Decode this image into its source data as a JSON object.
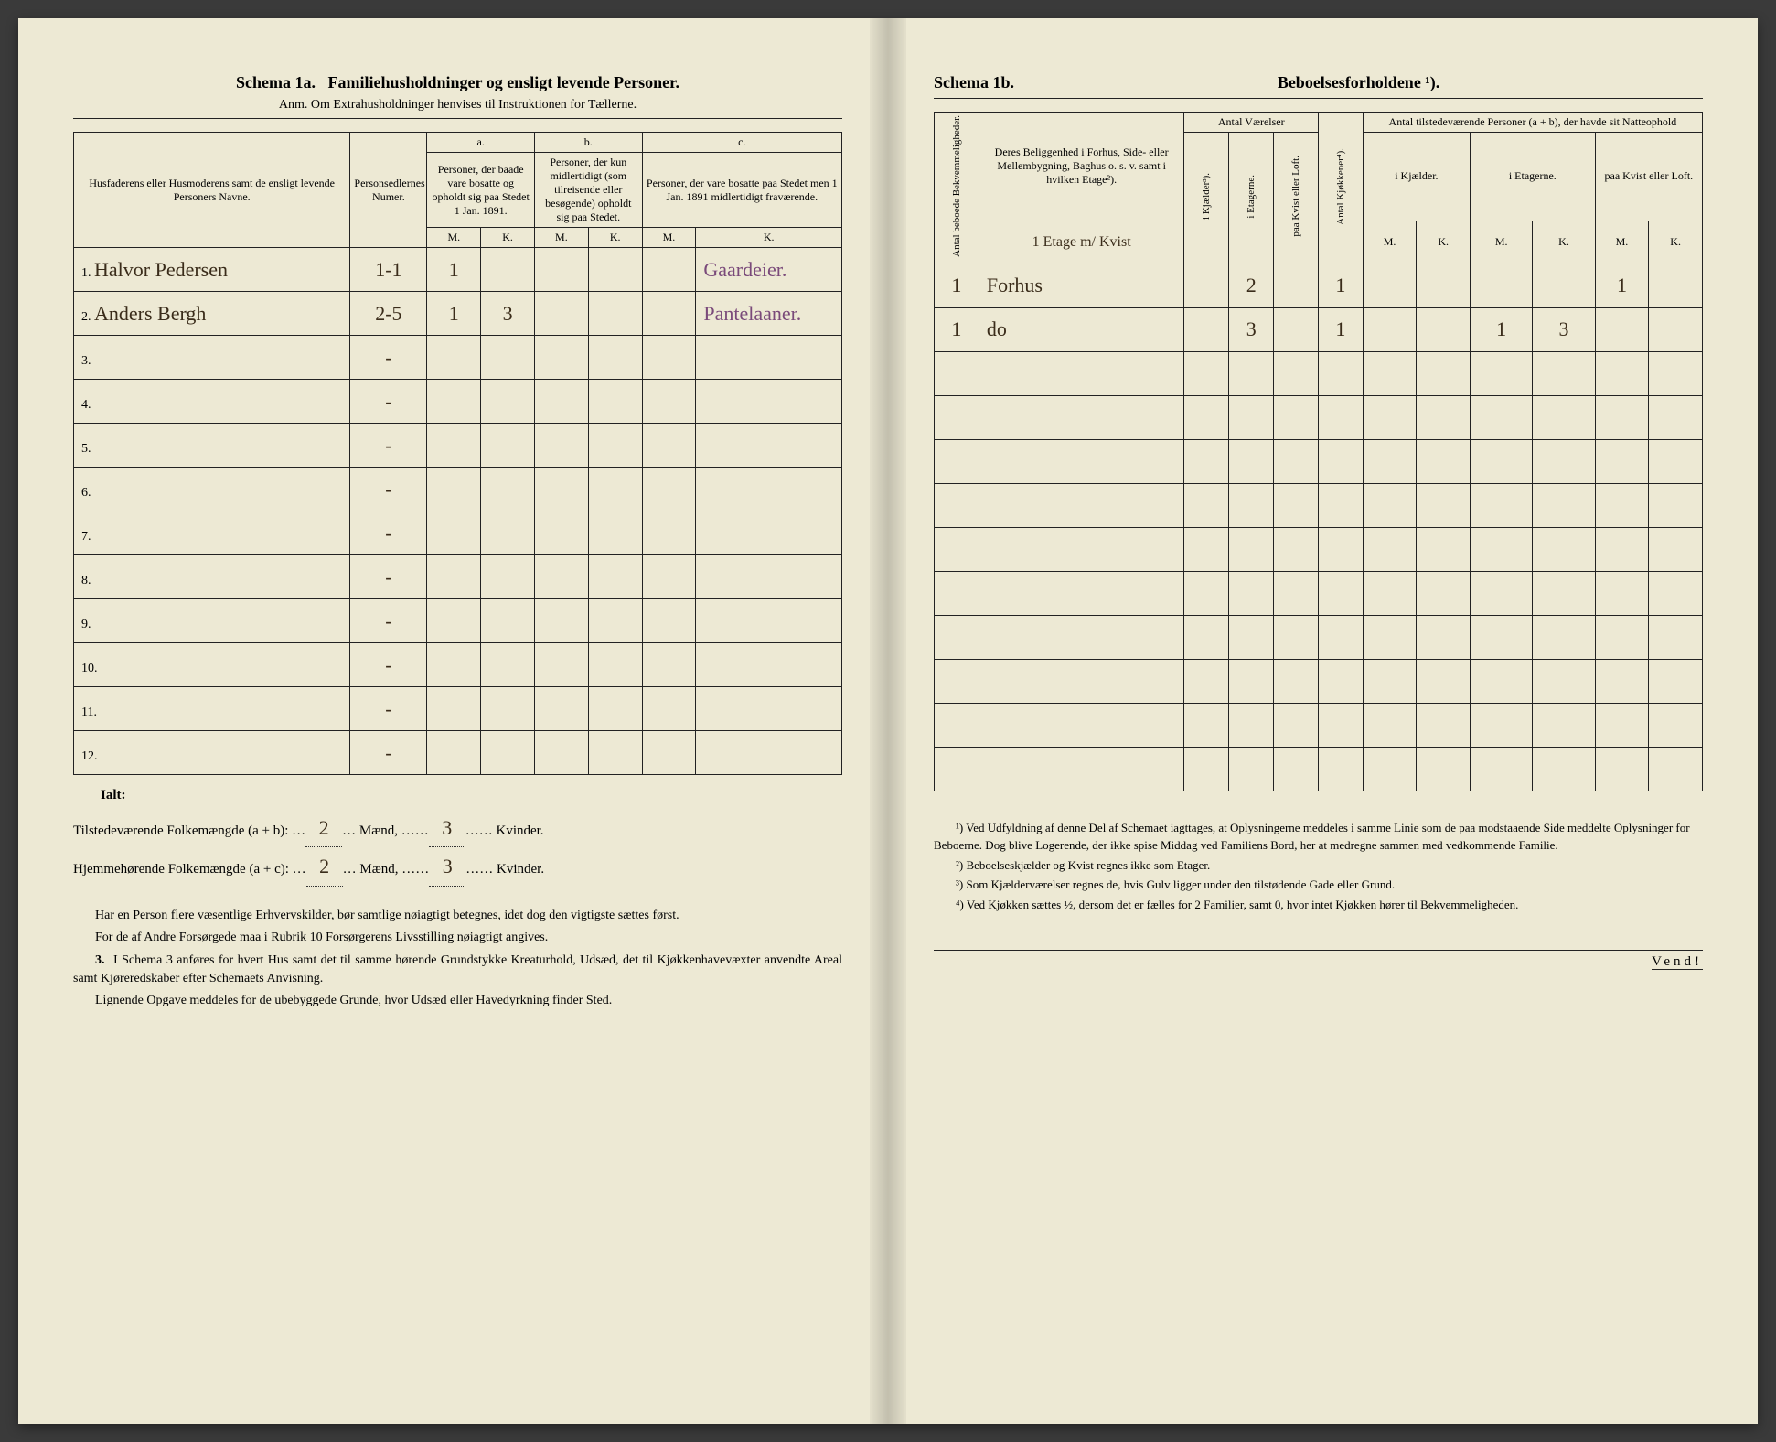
{
  "left": {
    "schema_label": "Schema 1a.",
    "title": "Familiehusholdninger og ensligt levende Personer.",
    "subtitle": "Anm. Om Extrahusholdninger henvises til Instruktionen for Tællerne.",
    "headers": {
      "col1": "Husfaderens eller Husmoderens samt de ensligt levende Personers Navne.",
      "col2": "Personsedlernes Numer.",
      "group_a": "a.",
      "group_a_text": "Personer, der baade vare bosatte og opholdt sig paa Stedet 1 Jan. 1891.",
      "group_b": "b.",
      "group_b_text": "Personer, der kun midlertidigt (som tilreisende eller besøgende) opholdt sig paa Stedet.",
      "group_c": "c.",
      "group_c_text": "Personer, der vare bosatte paa Stedet men 1 Jan. 1891 midlertidigt fraværende.",
      "m": "M.",
      "k": "K."
    },
    "rows": [
      {
        "n": "1.",
        "name": "Halvor Pedersen",
        "num": "1-1",
        "am": "1",
        "ak": "",
        "bm": "",
        "bk": "",
        "note": "Gaardeier."
      },
      {
        "n": "2.",
        "name": "Anders Bergh",
        "num": "2-5",
        "am": "1",
        "ak": "3",
        "bm": "",
        "bk": "",
        "note": "Pantelaaner."
      },
      {
        "n": "3.",
        "name": "",
        "num": "-",
        "am": "",
        "ak": "",
        "bm": "",
        "bk": "",
        "note": ""
      },
      {
        "n": "4.",
        "name": "",
        "num": "-",
        "am": "",
        "ak": "",
        "bm": "",
        "bk": "",
        "note": ""
      },
      {
        "n": "5.",
        "name": "",
        "num": "-",
        "am": "",
        "ak": "",
        "bm": "",
        "bk": "",
        "note": ""
      },
      {
        "n": "6.",
        "name": "",
        "num": "-",
        "am": "",
        "ak": "",
        "bm": "",
        "bk": "",
        "note": ""
      },
      {
        "n": "7.",
        "name": "",
        "num": "-",
        "am": "",
        "ak": "",
        "bm": "",
        "bk": "",
        "note": ""
      },
      {
        "n": "8.",
        "name": "",
        "num": "-",
        "am": "",
        "ak": "",
        "bm": "",
        "bk": "",
        "note": ""
      },
      {
        "n": "9.",
        "name": "",
        "num": "-",
        "am": "",
        "ak": "",
        "bm": "",
        "bk": "",
        "note": ""
      },
      {
        "n": "10.",
        "name": "",
        "num": "-",
        "am": "",
        "ak": "",
        "bm": "",
        "bk": "",
        "note": ""
      },
      {
        "n": "11.",
        "name": "",
        "num": "-",
        "am": "",
        "ak": "",
        "bm": "",
        "bk": "",
        "note": ""
      },
      {
        "n": "12.",
        "name": "",
        "num": "-",
        "am": "",
        "ak": "",
        "bm": "",
        "bk": "",
        "note": ""
      }
    ],
    "totals": {
      "ialt": "Ialt:",
      "line1_label": "Tilstedeværende Folkemængde (a + b):",
      "line1_m": "2",
      "line1_mlabel": "Mænd,",
      "line1_k": "3",
      "line1_klabel": "Kvinder.",
      "line2_label": "Hjemmehørende Folkemængde (a + c):",
      "line2_m": "2",
      "line2_k": "3"
    },
    "notes": {
      "p1": "Har en Person flere væsentlige Erhvervskilder, bør samtlige nøiagtigt betegnes, idet dog den vigtigste sættes først.",
      "p2": "For de af Andre Forsørgede maa i Rubrik 10 Forsørgerens Livsstilling nøiagtigt angives.",
      "p3num": "3.",
      "p3": "I Schema 3 anføres for hvert Hus samt det til samme hørende Grundstykke Kreaturhold, Udsæd, det til Kjøkkenhavevæxter anvendte Areal samt Kjøreredskaber efter Schemaets Anvisning.",
      "p4": "Lignende Opgave meddeles for de ubebyggede Grunde, hvor Udsæd eller Havedyrkning finder Sted."
    }
  },
  "right": {
    "schema_label": "Schema 1b.",
    "title": "Beboelsesforholdene ¹).",
    "headers": {
      "v1": "Antal beboede Bekvemmeligheder.",
      "col_belig": "Deres Beliggenhed i Forhus, Side- eller Mellembygning, Baghus o. s. v. samt i hvilken Etage²).",
      "group_rooms": "Antal Værelser",
      "v_kjael": "i Kjælder³).",
      "v_etage": "i Etagerne.",
      "v_kvist": "paa Kvist eller Loft.",
      "v_kjok": "Antal Kjøkkener⁴).",
      "group_pers": "Antal tilstedeværende Personer (a + b), der havde sit Natteophold",
      "p_kjael": "i Kjælder.",
      "p_etage": "i Etagerne.",
      "p_kvist": "paa Kvist eller Loft.",
      "m": "M.",
      "k": "K."
    },
    "header_handwritten": "1 Etage m/ Kvist",
    "rows": [
      {
        "bk": "1",
        "belig": "Forhus",
        "kj": "",
        "et": "2",
        "kv": "",
        "kk": "1",
        "pkjm": "",
        "pkjk": "",
        "petm": "",
        "petk": "",
        "pkvm": "1",
        "pkvk": ""
      },
      {
        "bk": "1",
        "belig": "do",
        "kj": "",
        "et": "3",
        "kv": "",
        "kk": "1",
        "pkjm": "",
        "pkjk": "",
        "petm": "1",
        "petk": "3",
        "pkvm": "",
        "pkvk": ""
      },
      {
        "bk": "",
        "belig": "",
        "kj": "",
        "et": "",
        "kv": "",
        "kk": "",
        "pkjm": "",
        "pkjk": "",
        "petm": "",
        "petk": "",
        "pkvm": "",
        "pkvk": ""
      },
      {
        "bk": "",
        "belig": "",
        "kj": "",
        "et": "",
        "kv": "",
        "kk": "",
        "pkjm": "",
        "pkjk": "",
        "petm": "",
        "petk": "",
        "pkvm": "",
        "pkvk": ""
      },
      {
        "bk": "",
        "belig": "",
        "kj": "",
        "et": "",
        "kv": "",
        "kk": "",
        "pkjm": "",
        "pkjk": "",
        "petm": "",
        "petk": "",
        "pkvm": "",
        "pkvk": ""
      },
      {
        "bk": "",
        "belig": "",
        "kj": "",
        "et": "",
        "kv": "",
        "kk": "",
        "pkjm": "",
        "pkjk": "",
        "petm": "",
        "petk": "",
        "pkvm": "",
        "pkvk": ""
      },
      {
        "bk": "",
        "belig": "",
        "kj": "",
        "et": "",
        "kv": "",
        "kk": "",
        "pkjm": "",
        "pkjk": "",
        "petm": "",
        "petk": "",
        "pkvm": "",
        "pkvk": ""
      },
      {
        "bk": "",
        "belig": "",
        "kj": "",
        "et": "",
        "kv": "",
        "kk": "",
        "pkjm": "",
        "pkjk": "",
        "petm": "",
        "petk": "",
        "pkvm": "",
        "pkvk": ""
      },
      {
        "bk": "",
        "belig": "",
        "kj": "",
        "et": "",
        "kv": "",
        "kk": "",
        "pkjm": "",
        "pkjk": "",
        "petm": "",
        "petk": "",
        "pkvm": "",
        "pkvk": ""
      },
      {
        "bk": "",
        "belig": "",
        "kj": "",
        "et": "",
        "kv": "",
        "kk": "",
        "pkjm": "",
        "pkjk": "",
        "petm": "",
        "petk": "",
        "pkvm": "",
        "pkvk": ""
      },
      {
        "bk": "",
        "belig": "",
        "kj": "",
        "et": "",
        "kv": "",
        "kk": "",
        "pkjm": "",
        "pkjk": "",
        "petm": "",
        "petk": "",
        "pkvm": "",
        "pkvk": ""
      },
      {
        "bk": "",
        "belig": "",
        "kj": "",
        "et": "",
        "kv": "",
        "kk": "",
        "pkjm": "",
        "pkjk": "",
        "petm": "",
        "petk": "",
        "pkvm": "",
        "pkvk": ""
      }
    ],
    "footnotes": {
      "f1": "¹) Ved Udfyldning af denne Del af Schemaet iagttages, at Oplysningerne meddeles i samme Linie som de paa modstaaende Side meddelte Oplysninger for Beboerne. Dog blive Logerende, der ikke spise Middag ved Familiens Bord, her at medregne sammen med vedkommende Familie.",
      "f2": "²) Beboelseskjælder og Kvist regnes ikke som Etager.",
      "f3": "³) Som Kjælderværelser regnes de, hvis Gulv ligger under den tilstødende Gade eller Grund.",
      "f4": "⁴) Ved Kjøkken sættes ½, dersom det er fælles for 2 Familier, samt 0, hvor intet Kjøkken hører til Bekvemmeligheden."
    },
    "vend": "Vend!"
  },
  "colors": {
    "paper": "#ede9d4",
    "ink": "#222222",
    "handwriting": "#3a2c1a",
    "handwriting_purple": "#7a4a7a"
  }
}
